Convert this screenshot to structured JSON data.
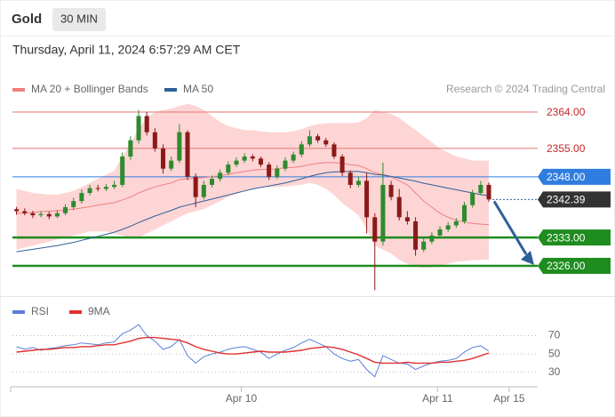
{
  "header": {
    "title": "Gold",
    "badge": "30 MIN",
    "timestamp": "Thursday, April 11, 2024 6:57:29 AM CET",
    "credit": "Research © 2024 Trading Central"
  },
  "chart_data": [
    {
      "type": "candlestick",
      "xlim": [
        -0.5,
        64
      ],
      "ylim": [
        2319.2,
        2367.5
      ],
      "up_color": "#2e8b2e",
      "down_color": "#8b1a1a",
      "open": [
        2340,
        2339.5,
        2339,
        2338.5,
        2338.8,
        2338.2,
        2339,
        2340.5,
        2342,
        2344,
        2345.2,
        2345,
        2345.5,
        2346,
        2353,
        2357,
        2363,
        2359,
        2355,
        2350,
        2352,
        2359,
        2348,
        2343,
        2346,
        2347.5,
        2349,
        2351,
        2352,
        2353,
        2352.5,
        2351,
        2348,
        2350,
        2352,
        2353.5,
        2356,
        2358,
        2357,
        2356,
        2353,
        2349,
        2346,
        2347,
        2338,
        2332,
        2346,
        2343,
        2338,
        2337,
        2330,
        2332,
        2333.5,
        2335,
        2336,
        2337,
        2341,
        2344,
        2346
      ],
      "high": [
        2340.6,
        2340.2,
        2339.6,
        2339.5,
        2339.4,
        2339.8,
        2341.2,
        2342.8,
        2344.9,
        2346,
        2346,
        2346.2,
        2347,
        2354,
        2358,
        2364.5,
        2364,
        2360,
        2356,
        2353,
        2361,
        2359.5,
        2348.8,
        2347,
        2348.3,
        2349.8,
        2351.8,
        2352.8,
        2353.8,
        2353.6,
        2353,
        2351.6,
        2350.8,
        2352.8,
        2354.2,
        2356.8,
        2359.5,
        2358.6,
        2357.6,
        2356.5,
        2353.6,
        2349.6,
        2348,
        2349,
        2339,
        2351.5,
        2347,
        2345,
        2339.5,
        2338,
        2333,
        2334.3,
        2335.8,
        2336.8,
        2337.8,
        2341.8,
        2344.8,
        2347,
        2346.6
      ],
      "low": [
        2338.6,
        2338.5,
        2337.8,
        2338,
        2337.5,
        2337.8,
        2338.5,
        2339.8,
        2341.4,
        2343.4,
        2344.4,
        2344.5,
        2345,
        2345.5,
        2352.2,
        2356.2,
        2358.2,
        2354.2,
        2348.8,
        2349.4,
        2351.4,
        2347.2,
        2340.5,
        2342.4,
        2345.4,
        2346.8,
        2348.4,
        2350.4,
        2351.4,
        2351.8,
        2350.4,
        2347.2,
        2347.4,
        2349.4,
        2351.4,
        2352.8,
        2355.4,
        2356.4,
        2355.4,
        2352.4,
        2348.2,
        2345.2,
        2345.4,
        2334,
        2320,
        2331,
        2342.2,
        2337.2,
        2336.2,
        2328.5,
        2329.4,
        2331.4,
        2332.8,
        2334.4,
        2335.4,
        2336.4,
        2340.4,
        2343.4,
        2341.8
      ],
      "close": [
        2339.5,
        2339,
        2338.5,
        2338.8,
        2338.2,
        2339,
        2340.5,
        2342,
        2344,
        2345.2,
        2345,
        2345.5,
        2346,
        2353,
        2357,
        2363,
        2359,
        2355,
        2350,
        2352,
        2359,
        2348,
        2343,
        2346,
        2347.5,
        2349,
        2351,
        2352,
        2353,
        2352.5,
        2351,
        2348,
        2350,
        2352,
        2353.5,
        2356,
        2358,
        2357,
        2356,
        2353,
        2349,
        2346,
        2347,
        2338,
        2332,
        2346,
        2343,
        2338,
        2337,
        2330,
        2332,
        2333.5,
        2335,
        2336,
        2337,
        2341,
        2344,
        2346,
        2342.39
      ],
      "series": [
        {
          "name": "MA 20 + Bollinger Bands",
          "color": "#f08080",
          "band_color": "#fdd5d5",
          "values": [
            2339,
            2339,
            2339.2,
            2339.4,
            2339.5,
            2339.6,
            2339.8,
            2340,
            2340.3,
            2340.6,
            2341,
            2341.3,
            2341.6,
            2342.3,
            2343,
            2344,
            2344.8,
            2345.5,
            2346,
            2346.5,
            2347.3,
            2347.5,
            2347.6,
            2347.8,
            2348,
            2348.3,
            2348.6,
            2349,
            2349.3,
            2349.6,
            2349.8,
            2349.8,
            2350,
            2350.2,
            2350.3,
            2350.6,
            2351,
            2351.3,
            2351.5,
            2351.5,
            2351.3,
            2351,
            2350.8,
            2350,
            2349,
            2348.6,
            2348,
            2347,
            2346,
            2344,
            2342,
            2340.5,
            2339,
            2338,
            2337.3,
            2336.8,
            2336.5,
            2336.3,
            2336.2
          ],
          "upper": [
            2345,
            2344.5,
            2344,
            2343.8,
            2343.6,
            2343.6,
            2344,
            2344.5,
            2345.5,
            2346.5,
            2347.5,
            2348.5,
            2349.5,
            2353,
            2356,
            2360,
            2362.5,
            2364,
            2364.5,
            2364.8,
            2365.5,
            2366,
            2365.5,
            2364.5,
            2363,
            2361.5,
            2360.5,
            2360,
            2359.5,
            2359.5,
            2359.2,
            2359,
            2359,
            2359,
            2359.2,
            2359.8,
            2360.5,
            2361,
            2361.2,
            2361.3,
            2361.3,
            2361.3,
            2361.4,
            2362.5,
            2364.5,
            2364,
            2363.5,
            2362.5,
            2361,
            2359.5,
            2358,
            2356.5,
            2355,
            2354,
            2353,
            2352.5,
            2352,
            2352,
            2352
          ],
          "lower": [
            2330,
            2330.5,
            2331,
            2331.5,
            2332,
            2332.5,
            2333,
            2333.5,
            2334,
            2334.5,
            2334.5,
            2334.5,
            2334,
            2333.5,
            2333,
            2333,
            2334,
            2335,
            2336,
            2337,
            2338,
            2339,
            2339.5,
            2340,
            2341,
            2342,
            2343,
            2343.8,
            2344.5,
            2345,
            2345.5,
            2345.5,
            2345.5,
            2345.6,
            2345.8,
            2346,
            2346.5,
            2346,
            2345,
            2343.5,
            2341.5,
            2340,
            2338.5,
            2335,
            2331,
            2330,
            2329,
            2327.5,
            2326.5,
            2325.8,
            2325.5,
            2325.6,
            2326,
            2326.5,
            2327,
            2327.2,
            2327.4,
            2327.5,
            2327.6
          ]
        },
        {
          "name": "MA 50",
          "color": "#2f5f9a",
          "values": [
            2329.5,
            2329.8,
            2330.1,
            2330.4,
            2330.7,
            2331,
            2331.4,
            2331.8,
            2332.3,
            2332.8,
            2333.3,
            2333.8,
            2334.3,
            2335,
            2335.8,
            2336.7,
            2337.5,
            2338.3,
            2339,
            2339.7,
            2340.5,
            2341,
            2341.5,
            2342,
            2342.5,
            2343,
            2343.5,
            2344,
            2344.5,
            2345,
            2345.4,
            2345.7,
            2346.1,
            2346.5,
            2347,
            2347.5,
            2348.1,
            2348.6,
            2349,
            2349.2,
            2349.3,
            2349.3,
            2349.3,
            2349,
            2348.6,
            2348.4,
            2348.1,
            2347.7,
            2347.3,
            2346.9,
            2346.4,
            2346,
            2345.6,
            2345.2,
            2344.8,
            2344.4,
            2344,
            2343.6,
            2343.3
          ]
        }
      ],
      "levels": [
        {
          "value": 2364,
          "label": "2364.00",
          "color": "#e57373",
          "boxed": false,
          "thick": false
        },
        {
          "value": 2355,
          "label": "2355.00",
          "color": "#e57373",
          "boxed": false,
          "thick": false
        },
        {
          "value": 2348,
          "label": "2348.00",
          "color": "#2f7de1",
          "boxed": true,
          "thick": false
        },
        {
          "value": 2333,
          "label": "2333.00",
          "color": "#1e8c1e",
          "boxed": true,
          "thick": true
        },
        {
          "value": 2326,
          "label": "2326.00",
          "color": "#1e8c1e",
          "boxed": true,
          "thick": true
        }
      ],
      "last_price": 2342.39,
      "last_price_color": "#333333"
    },
    {
      "type": "line",
      "xlim": [
        -0.5,
        64
      ],
      "ylim": [
        19,
        87
      ],
      "yticks": [
        70,
        50,
        30
      ],
      "grid": true,
      "xticks": [
        {
          "value": 27.6,
          "label": "Apr 10"
        },
        {
          "value": 51.7,
          "label": "Apr 11"
        },
        {
          "value": 60.5,
          "label": "Apr 15"
        }
      ],
      "series": [
        {
          "name": "RSI",
          "color": "#5b7fd6",
          "values": [
            58,
            55,
            57,
            54,
            56,
            57,
            59,
            60,
            62,
            61,
            60,
            62,
            63,
            72,
            76,
            82,
            70,
            64,
            55,
            58,
            66,
            48,
            40,
            47,
            50,
            52,
            55,
            57,
            58,
            55,
            52,
            45,
            50,
            54,
            57,
            62,
            66,
            62,
            58,
            50,
            45,
            42,
            44,
            33,
            25,
            48,
            44,
            40,
            39,
            33,
            37,
            40,
            42,
            43,
            45,
            52,
            57,
            59,
            53
          ]
        },
        {
          "name": "9MA",
          "color": "#e03030",
          "values": [
            52,
            53,
            54,
            55,
            55,
            56,
            57,
            57,
            58,
            58,
            59,
            60,
            60,
            62,
            64,
            67,
            68,
            68,
            67,
            66,
            65,
            62,
            58,
            55,
            53,
            51,
            50,
            50,
            51,
            52,
            53,
            52,
            52,
            52,
            53,
            54,
            56,
            57,
            58,
            57,
            55,
            52,
            49,
            45,
            41,
            40,
            40,
            40,
            41,
            40,
            40,
            40,
            41,
            41,
            42,
            43,
            45,
            48,
            51
          ]
        }
      ]
    }
  ]
}
